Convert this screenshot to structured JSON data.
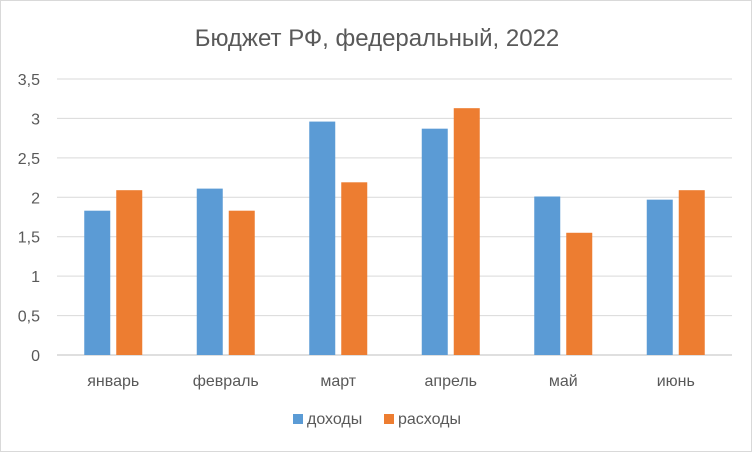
{
  "chart_data": {
    "type": "bar",
    "title": "Бюджет РФ, федеральный, 2022",
    "xlabel": "",
    "ylabel": "",
    "categories": [
      "январь",
      "февраль",
      "март",
      "апрель",
      "май",
      "июнь"
    ],
    "series": [
      {
        "name": "доходы",
        "color": "#5b9bd5",
        "values": [
          1.83,
          2.11,
          2.96,
          2.87,
          2.01,
          1.97
        ]
      },
      {
        "name": "расходы",
        "color": "#ed7d31",
        "values": [
          2.09,
          1.83,
          2.19,
          3.13,
          1.55,
          2.09
        ]
      }
    ],
    "ylim": [
      0,
      3.5
    ],
    "yticks": [
      "0",
      "0,5",
      "1",
      "1,5",
      "2",
      "2,5",
      "3",
      "3,5"
    ],
    "grid": true,
    "legend_position": "bottom"
  }
}
